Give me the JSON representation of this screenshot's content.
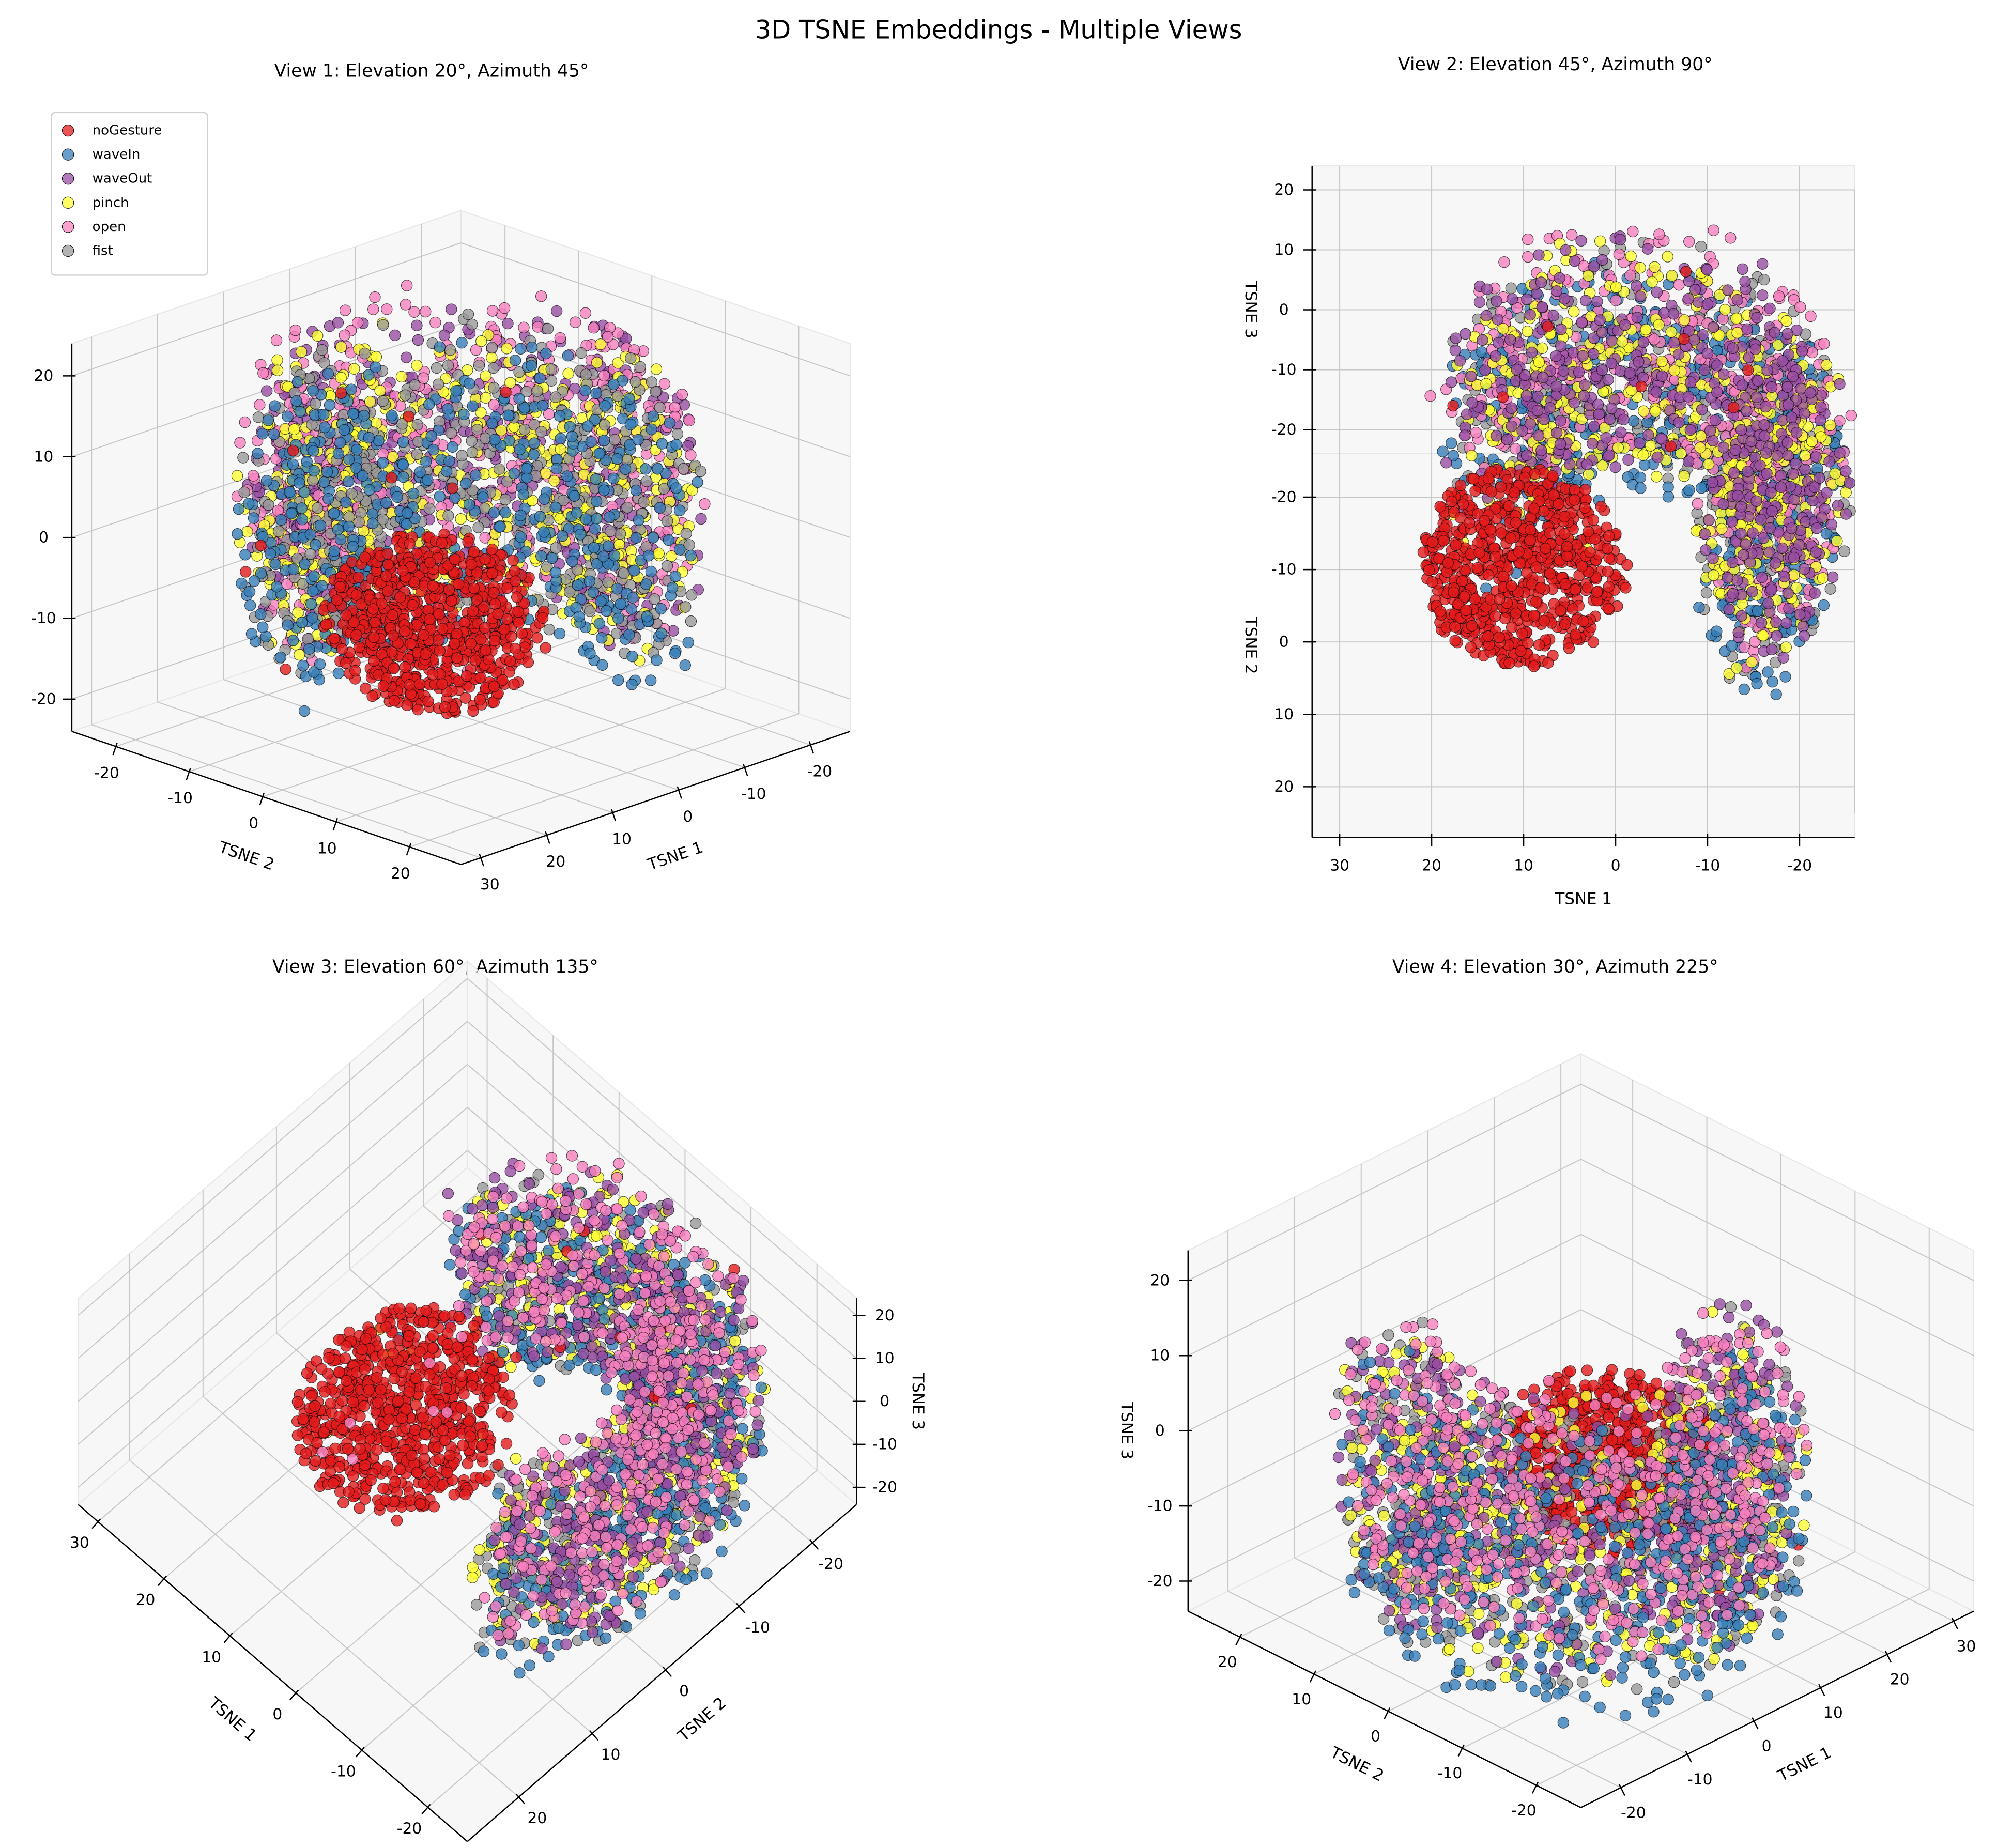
{
  "chart_data": {
    "type": "scatter3d",
    "title": "3D TSNE Embeddings - Multiple Views",
    "legend": {
      "placement": "upper-left of view 1",
      "entries": [
        {
          "label": "noGesture",
          "color": "#e41a1c"
        },
        {
          "label": "waveIn",
          "color": "#377eb8"
        },
        {
          "label": "waveOut",
          "color": "#984ea3"
        },
        {
          "label": "pinch",
          "color": "#ffff33"
        },
        {
          "label": "open",
          "color": "#f781bf"
        },
        {
          "label": "fist",
          "color": "#999999"
        }
      ]
    },
    "axis_ranges": {
      "x": [
        -26,
        33
      ],
      "y": [
        -26,
        27
      ],
      "z": [
        -24,
        24
      ]
    },
    "grid": true,
    "views": [
      {
        "title": "View 1: Elevation 20°, Azimuth 45°",
        "elev": 20,
        "azim": 45,
        "xlabel": "TSNE 1",
        "ylabel": "TSNE 2",
        "zlabel": "",
        "xticks": [
          "-20",
          "-10",
          "0",
          "10",
          "20",
          "30"
        ],
        "yticks": [
          "-20",
          "-10",
          "0",
          "10",
          "20"
        ],
        "zticks": [
          "-20",
          "-10",
          "0",
          "10",
          "20"
        ]
      },
      {
        "title": "View 2: Elevation 45°, Azimuth 90°",
        "elev": 45,
        "azim": 90,
        "xlabel": "TSNE 1",
        "ylabel": "TSNE 2",
        "zlabel": "TSNE 3",
        "xticks": [
          "-20",
          "-10",
          "0",
          "10",
          "20",
          "30"
        ],
        "yticks": [
          "-20",
          "-10",
          "0",
          "10",
          "20"
        ],
        "zticks": [
          "-20",
          "-10",
          "0",
          "10",
          "20"
        ]
      },
      {
        "title": "View 3: Elevation 60°, Azimuth 135°",
        "elev": 60,
        "azim": 135,
        "xlabel": "TSNE 1",
        "ylabel": "TSNE 2",
        "zlabel": "TSNE 3",
        "xticks": [
          "-20",
          "-10",
          "0",
          "10",
          "20",
          "30"
        ],
        "yticks": [
          "-20",
          "-10",
          "0",
          "10",
          "20"
        ],
        "zticks": [
          "-20",
          "-10",
          "0",
          "10",
          "20"
        ]
      },
      {
        "title": "View 4: Elevation 30°, Azimuth 225°",
        "elev": 30,
        "azim": 225,
        "xlabel": "TSNE 1",
        "ylabel": "TSNE 2",
        "zlabel": "TSNE 3",
        "xticks": [
          "-20",
          "-10",
          "0",
          "10",
          "20",
          "30"
        ],
        "yticks": [
          "-20",
          "-10",
          "0",
          "10",
          "20"
        ],
        "zticks": [
          "-20",
          "-10",
          "0",
          "10",
          "20"
        ]
      }
    ]
  }
}
